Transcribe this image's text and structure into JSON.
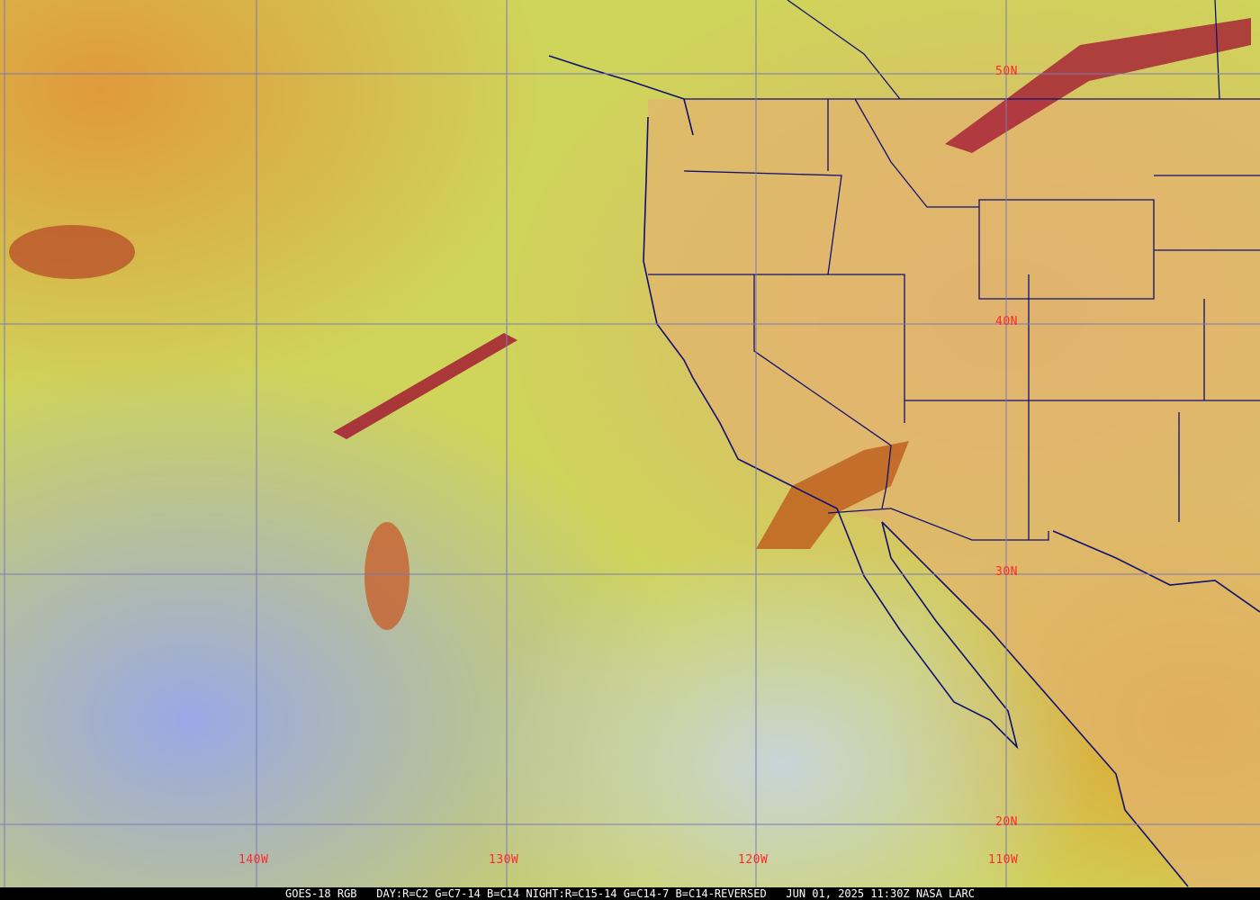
{
  "footer": {
    "satellite": "GOES-18 RGB",
    "recipe": "DAY:R=C2 G=C7-14 B=C14 NIGHT:R=C15-14 G=C14-7 B=C14-REVERSED",
    "timestamp": "JUN 01, 2025 11:30Z",
    "source": "NASA LARC"
  },
  "grid": {
    "latitude_labels": [
      "50N",
      "40N",
      "30N",
      "20N"
    ],
    "longitude_labels": [
      "140W",
      "130W",
      "120W",
      "110W"
    ]
  },
  "colors": {
    "grid": "#7a7ab8",
    "borders": "#101070",
    "labels": "#ff2a2a",
    "ocean_clear": "#9aa8e6",
    "low_cloud": "#cfd45a",
    "high_cloud": "#e0a040",
    "cold_cloud": "#a01030"
  }
}
